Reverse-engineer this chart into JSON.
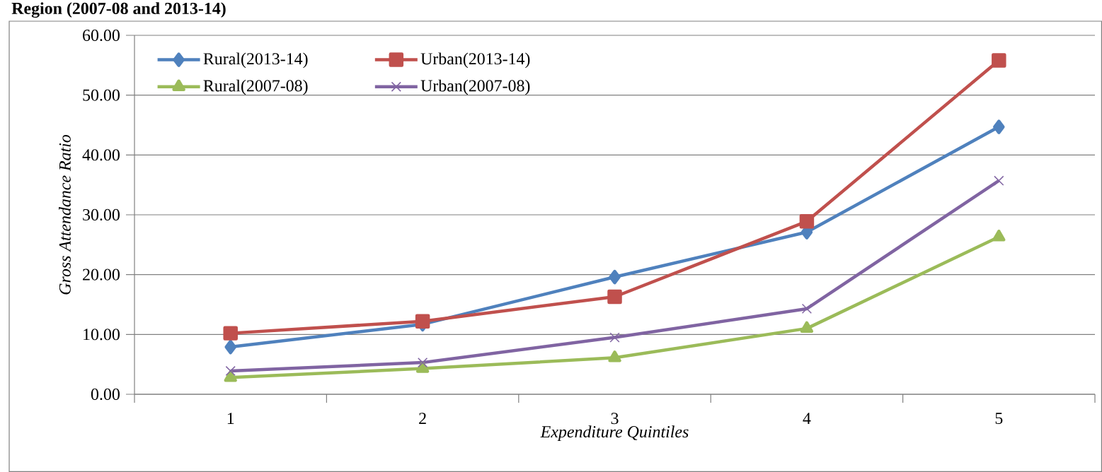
{
  "chart_data": {
    "type": "line",
    "title": "Region (2007-08 and 2013-14)",
    "xlabel": "Expenditure Quintiles",
    "ylabel": "Gross Attendance  Ratio",
    "categories": [
      "1",
      "2",
      "3",
      "4",
      "5"
    ],
    "series": [
      {
        "name": "Rural(2013-14)",
        "color": "#4f81bd",
        "marker": "diamond",
        "values": [
          7.9,
          11.7,
          19.6,
          27.1,
          44.7
        ]
      },
      {
        "name": "Urban(2013-14)",
        "color": "#c0504d",
        "marker": "square",
        "values": [
          10.2,
          12.2,
          16.3,
          28.9,
          55.8
        ]
      },
      {
        "name": "Rural(2007-08)",
        "color": "#9bbb59",
        "marker": "triangle",
        "values": [
          2.8,
          4.3,
          6.1,
          11.0,
          26.3
        ]
      },
      {
        "name": "Urban(2007-08)",
        "color": "#8064a2",
        "marker": "cross",
        "values": [
          3.9,
          5.3,
          9.5,
          14.3,
          35.7
        ]
      }
    ],
    "ylim": [
      0,
      60
    ],
    "yticks": [
      {
        "value": 0,
        "label": "0.00"
      },
      {
        "value": 10,
        "label": "10.00"
      },
      {
        "value": 20,
        "label": "20.00"
      },
      {
        "value": 30,
        "label": "30.00"
      },
      {
        "value": 40,
        "label": "40.00"
      },
      {
        "value": 50,
        "label": "50.00"
      },
      {
        "value": 60,
        "label": "60.00"
      }
    ],
    "grid": "y",
    "legend": "top left",
    "line_style": "solid"
  }
}
